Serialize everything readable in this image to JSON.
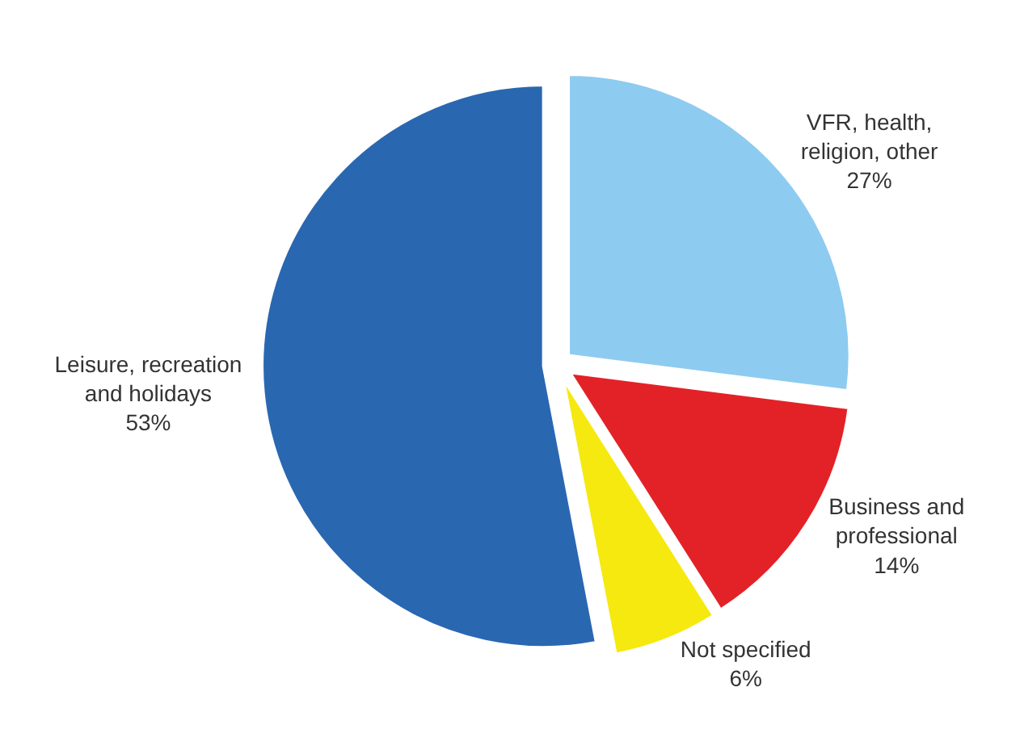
{
  "chart_data": {
    "type": "pie",
    "categories": [
      "VFR, health, religion, other",
      "Business and professional",
      "Not specified",
      "Leisure, recreation and holidays"
    ],
    "values": [
      27,
      14,
      6,
      53
    ],
    "value_labels": [
      "27%",
      "14%",
      "6%",
      "53%"
    ],
    "colors": [
      "#8ecbf0",
      "#e32227",
      "#f5e90f",
      "#2a67b1"
    ]
  }
}
